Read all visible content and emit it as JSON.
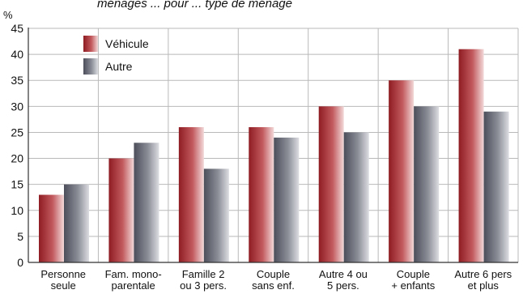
{
  "chart_data": {
    "type": "bar",
    "top_caption": "ménages ... pour ... type de ménage",
    "ylabel": "%",
    "ylim": [
      0,
      45
    ],
    "yticks": [
      0,
      5,
      10,
      15,
      20,
      25,
      30,
      35,
      40,
      45
    ],
    "grid": true,
    "legend_position": "top-left",
    "categories": [
      [
        "Personne",
        "seule"
      ],
      [
        "Fam. mono-",
        "parentale"
      ],
      [
        "Famille 2",
        "ou 3 pers."
      ],
      [
        "Couple",
        "sans enf."
      ],
      [
        "Autre 4 ou",
        "5 pers."
      ],
      [
        "Couple",
        "+ enfants"
      ],
      [
        "Autre 6 pers",
        "et plus"
      ]
    ],
    "series": [
      {
        "name": "Véhicule",
        "values": [
          13,
          20,
          26,
          26,
          30,
          35,
          41
        ],
        "color": "#a3242b"
      },
      {
        "name": "Autre",
        "values": [
          15,
          23,
          18,
          24,
          25,
          30,
          29
        ],
        "color": "#6e707c"
      }
    ]
  }
}
